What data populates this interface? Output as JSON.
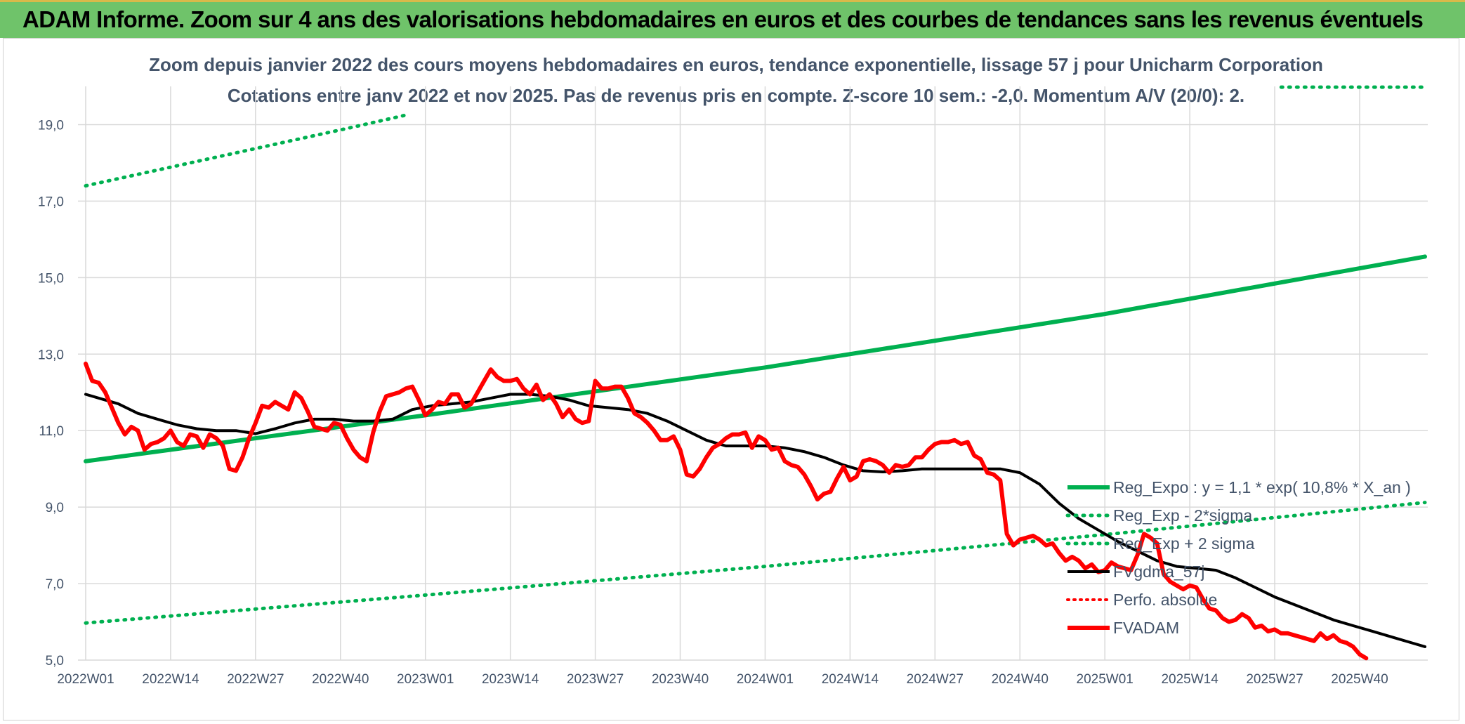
{
  "header": {
    "title": "ADAM Informe. Zoom sur 4 ans des valorisations hebdomadaires en euros et des courbes de tendances sans les revenus éventuels"
  },
  "colors": {
    "banner": "#6fc36a",
    "regExpo": "#00b050",
    "sigma": "#00b050",
    "fvgdma": "#000000",
    "perfo": "#ff0000",
    "fvadam": "#ff0000",
    "grid": "#d9d9d9",
    "text": "#44546a"
  },
  "chart_data": {
    "type": "line",
    "title": "Zoom depuis janvier 2022 des cours moyens hebdomadaires en euros, tendance exponentielle, lissage 57 j pour Unicharm Corporation",
    "subtitle": "Cotations entre janv 2022 et nov 2025. Pas de revenus pris en compte. Z-score 10 sem.: -2,0. Momentum A/V (20/0): 2.",
    "xlabel": "",
    "ylabel": "",
    "ylim": [
      5,
      20
    ],
    "y_ticks": [
      "5,0",
      "7,0",
      "9,0",
      "11,0",
      "13,0",
      "15,0",
      "17,0",
      "19,0"
    ],
    "y_tick_values": [
      5,
      7,
      9,
      11,
      13,
      15,
      17,
      19
    ],
    "x_tick_labels": [
      "2022W01",
      "2022W14",
      "2022W27",
      "2022W40",
      "2023W01",
      "2023W14",
      "2023W27",
      "2023W40",
      "2024W01",
      "2024W14",
      "2024W27",
      "2024W40",
      "2025W01",
      "2025W14",
      "2025W27",
      "2025W40"
    ],
    "x_tick_values": [
      0,
      13,
      26,
      39,
      52,
      65,
      78,
      91,
      104,
      117,
      130,
      143,
      156,
      169,
      182,
      195
    ],
    "x_range": [
      0,
      205
    ],
    "grid": true,
    "legend_position": "right",
    "series": [
      {
        "name": "Reg_Expo : y = 1,1 * exp( 10,8% *  X_an )",
        "style": "solid-thick",
        "points": [
          [
            0,
            10.2
          ],
          [
            52,
            11.4
          ],
          [
            104,
            12.65
          ],
          [
            156,
            14.05
          ],
          [
            205,
            15.55
          ]
        ]
      },
      {
        "name": "Reg_Exp - 2*sigma",
        "style": "dotted",
        "points": [
          [
            0,
            5.97
          ],
          [
            52,
            6.7
          ],
          [
            104,
            7.45
          ],
          [
            156,
            8.28
          ],
          [
            205,
            9.12
          ]
        ]
      },
      {
        "name": "Reg_Exp + 2 sigma",
        "style": "dotted",
        "points": [
          [
            0,
            17.4
          ],
          [
            20,
            18.15
          ],
          [
            40,
            18.9
          ],
          [
            49,
            19.25
          ]
        ],
        "extra_points": [
          [
            183,
            19.98
          ],
          [
            205,
            19.98
          ]
        ]
      },
      {
        "name": "FVgdma_57j",
        "style": "solid",
        "points": [
          [
            0,
            11.95
          ],
          [
            2,
            11.85
          ],
          [
            5,
            11.7
          ],
          [
            8,
            11.45
          ],
          [
            11,
            11.3
          ],
          [
            14,
            11.15
          ],
          [
            17,
            11.05
          ],
          [
            20,
            11.0
          ],
          [
            23,
            11.0
          ],
          [
            26,
            10.92
          ],
          [
            29,
            11.05
          ],
          [
            32,
            11.2
          ],
          [
            35,
            11.3
          ],
          [
            38,
            11.3
          ],
          [
            41,
            11.25
          ],
          [
            44,
            11.25
          ],
          [
            47,
            11.3
          ],
          [
            50,
            11.55
          ],
          [
            53,
            11.65
          ],
          [
            56,
            11.7
          ],
          [
            59,
            11.75
          ],
          [
            62,
            11.85
          ],
          [
            65,
            11.95
          ],
          [
            68,
            11.95
          ],
          [
            71,
            11.9
          ],
          [
            74,
            11.8
          ],
          [
            77,
            11.65
          ],
          [
            80,
            11.6
          ],
          [
            83,
            11.55
          ],
          [
            86,
            11.45
          ],
          [
            89,
            11.25
          ],
          [
            92,
            11.0
          ],
          [
            95,
            10.75
          ],
          [
            98,
            10.6
          ],
          [
            101,
            10.6
          ],
          [
            104,
            10.6
          ],
          [
            107,
            10.55
          ],
          [
            110,
            10.45
          ],
          [
            113,
            10.3
          ],
          [
            116,
            10.1
          ],
          [
            119,
            9.95
          ],
          [
            122,
            9.92
          ],
          [
            125,
            9.95
          ],
          [
            128,
            10.0
          ],
          [
            131,
            10.0
          ],
          [
            134,
            10.0
          ],
          [
            137,
            10.0
          ],
          [
            140,
            10.0
          ],
          [
            143,
            9.9
          ],
          [
            146,
            9.6
          ],
          [
            149,
            9.1
          ],
          [
            152,
            8.7
          ],
          [
            155,
            8.4
          ],
          [
            158,
            8.1
          ],
          [
            161,
            7.85
          ],
          [
            164,
            7.6
          ],
          [
            167,
            7.45
          ],
          [
            170,
            7.4
          ],
          [
            173,
            7.35
          ],
          [
            176,
            7.15
          ],
          [
            179,
            6.9
          ],
          [
            182,
            6.65
          ],
          [
            185,
            6.45
          ],
          [
            188,
            6.25
          ],
          [
            191,
            6.05
          ],
          [
            194,
            5.9
          ],
          [
            197,
            5.75
          ],
          [
            200,
            5.6
          ],
          [
            203,
            5.45
          ],
          [
            205,
            5.35
          ]
        ]
      },
      {
        "name": "Perfo. absolue",
        "style": "dotted",
        "points": []
      },
      {
        "name": "FVADAM",
        "style": "solid-thick",
        "points": [
          [
            0,
            12.75
          ],
          [
            1,
            12.3
          ],
          [
            2,
            12.25
          ],
          [
            3,
            12.0
          ],
          [
            4,
            11.6
          ],
          [
            5,
            11.2
          ],
          [
            6,
            10.9
          ],
          [
            7,
            11.1
          ],
          [
            8,
            11.0
          ],
          [
            9,
            10.5
          ],
          [
            10,
            10.65
          ],
          [
            11,
            10.7
          ],
          [
            12,
            10.8
          ],
          [
            13,
            11.0
          ],
          [
            14,
            10.7
          ],
          [
            15,
            10.6
          ],
          [
            16,
            10.9
          ],
          [
            17,
            10.85
          ],
          [
            18,
            10.55
          ],
          [
            19,
            10.9
          ],
          [
            20,
            10.8
          ],
          [
            21,
            10.6
          ],
          [
            22,
            10.0
          ],
          [
            23,
            9.95
          ],
          [
            24,
            10.3
          ],
          [
            25,
            10.8
          ],
          [
            26,
            11.2
          ],
          [
            27,
            11.65
          ],
          [
            28,
            11.6
          ],
          [
            29,
            11.75
          ],
          [
            30,
            11.65
          ],
          [
            31,
            11.55
          ],
          [
            32,
            12.0
          ],
          [
            33,
            11.85
          ],
          [
            34,
            11.5
          ],
          [
            35,
            11.1
          ],
          [
            36,
            11.05
          ],
          [
            37,
            11.0
          ],
          [
            38,
            11.2
          ],
          [
            39,
            11.15
          ],
          [
            40,
            10.8
          ],
          [
            41,
            10.5
          ],
          [
            42,
            10.3
          ],
          [
            43,
            10.2
          ],
          [
            44,
            10.95
          ],
          [
            45,
            11.5
          ],
          [
            46,
            11.9
          ],
          [
            47,
            11.95
          ],
          [
            48,
            12.0
          ],
          [
            49,
            12.1
          ],
          [
            50,
            12.15
          ],
          [
            51,
            11.8
          ],
          [
            52,
            11.4
          ],
          [
            53,
            11.55
          ],
          [
            54,
            11.75
          ],
          [
            55,
            11.7
          ],
          [
            56,
            11.95
          ],
          [
            57,
            11.95
          ],
          [
            58,
            11.6
          ],
          [
            59,
            11.7
          ],
          [
            60,
            12.0
          ],
          [
            61,
            12.3
          ],
          [
            62,
            12.6
          ],
          [
            63,
            12.4
          ],
          [
            64,
            12.3
          ],
          [
            65,
            12.3
          ],
          [
            66,
            12.35
          ],
          [
            67,
            12.1
          ],
          [
            68,
            11.95
          ],
          [
            69,
            12.2
          ],
          [
            70,
            11.8
          ],
          [
            71,
            11.95
          ],
          [
            72,
            11.7
          ],
          [
            73,
            11.35
          ],
          [
            74,
            11.55
          ],
          [
            75,
            11.3
          ],
          [
            76,
            11.2
          ],
          [
            77,
            11.25
          ],
          [
            78,
            12.3
          ],
          [
            79,
            12.1
          ],
          [
            80,
            12.1
          ],
          [
            81,
            12.15
          ],
          [
            82,
            12.15
          ],
          [
            83,
            11.85
          ],
          [
            84,
            11.45
          ],
          [
            85,
            11.35
          ],
          [
            86,
            11.2
          ],
          [
            87,
            11.0
          ],
          [
            88,
            10.75
          ],
          [
            89,
            10.75
          ],
          [
            90,
            10.85
          ],
          [
            91,
            10.5
          ],
          [
            92,
            9.85
          ],
          [
            93,
            9.8
          ],
          [
            94,
            10.0
          ],
          [
            95,
            10.3
          ],
          [
            96,
            10.55
          ],
          [
            97,
            10.65
          ],
          [
            98,
            10.8
          ],
          [
            99,
            10.9
          ],
          [
            100,
            10.9
          ],
          [
            101,
            10.95
          ],
          [
            102,
            10.55
          ],
          [
            103,
            10.85
          ],
          [
            104,
            10.75
          ],
          [
            105,
            10.5
          ],
          [
            106,
            10.55
          ],
          [
            107,
            10.2
          ],
          [
            108,
            10.1
          ],
          [
            109,
            10.05
          ],
          [
            110,
            9.85
          ],
          [
            111,
            9.55
          ],
          [
            112,
            9.2
          ],
          [
            113,
            9.35
          ],
          [
            114,
            9.4
          ],
          [
            115,
            9.75
          ],
          [
            116,
            10.05
          ],
          [
            117,
            9.7
          ],
          [
            118,
            9.8
          ],
          [
            119,
            10.2
          ],
          [
            120,
            10.25
          ],
          [
            121,
            10.2
          ],
          [
            122,
            10.1
          ],
          [
            123,
            9.9
          ],
          [
            124,
            10.1
          ],
          [
            125,
            10.05
          ],
          [
            126,
            10.1
          ],
          [
            127,
            10.3
          ],
          [
            128,
            10.3
          ],
          [
            129,
            10.5
          ],
          [
            130,
            10.65
          ],
          [
            131,
            10.7
          ],
          [
            132,
            10.7
          ],
          [
            133,
            10.75
          ],
          [
            134,
            10.65
          ],
          [
            135,
            10.7
          ],
          [
            136,
            10.35
          ],
          [
            137,
            10.25
          ],
          [
            138,
            9.9
          ],
          [
            139,
            9.85
          ],
          [
            140,
            9.7
          ],
          [
            141,
            8.3
          ],
          [
            142,
            8.0
          ],
          [
            143,
            8.15
          ],
          [
            144,
            8.2
          ],
          [
            145,
            8.25
          ],
          [
            146,
            8.15
          ],
          [
            147,
            8.0
          ],
          [
            148,
            8.05
          ],
          [
            149,
            7.8
          ],
          [
            150,
            7.6
          ],
          [
            151,
            7.7
          ],
          [
            152,
            7.6
          ],
          [
            153,
            7.4
          ],
          [
            154,
            7.5
          ],
          [
            155,
            7.3
          ],
          [
            156,
            7.35
          ],
          [
            157,
            7.55
          ],
          [
            158,
            7.45
          ],
          [
            159,
            7.4
          ],
          [
            160,
            7.35
          ],
          [
            161,
            7.75
          ],
          [
            162,
            8.3
          ],
          [
            163,
            8.2
          ],
          [
            164,
            8.05
          ],
          [
            165,
            7.25
          ],
          [
            166,
            7.05
          ],
          [
            167,
            6.95
          ],
          [
            168,
            6.85
          ],
          [
            169,
            6.95
          ],
          [
            170,
            6.9
          ],
          [
            171,
            6.6
          ],
          [
            172,
            6.35
          ],
          [
            173,
            6.3
          ],
          [
            174,
            6.1
          ],
          [
            175,
            6.0
          ],
          [
            176,
            6.05
          ],
          [
            177,
            6.2
          ],
          [
            178,
            6.1
          ],
          [
            179,
            5.85
          ],
          [
            180,
            5.9
          ],
          [
            181,
            5.75
          ],
          [
            182,
            5.8
          ],
          [
            183,
            5.7
          ],
          [
            184,
            5.7
          ],
          [
            185,
            5.65
          ],
          [
            186,
            5.6
          ],
          [
            187,
            5.55
          ],
          [
            188,
            5.5
          ],
          [
            189,
            5.7
          ],
          [
            190,
            5.55
          ],
          [
            191,
            5.65
          ],
          [
            192,
            5.5
          ],
          [
            193,
            5.45
          ],
          [
            194,
            5.35
          ],
          [
            195,
            5.15
          ],
          [
            196,
            5.05
          ]
        ]
      }
    ]
  }
}
